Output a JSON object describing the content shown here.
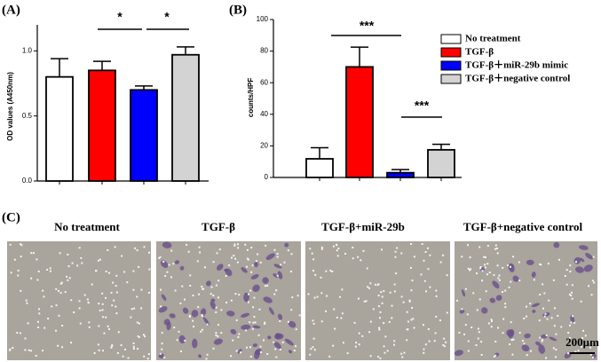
{
  "chart_data": [
    {
      "type": "bar",
      "panel_label": "(A)",
      "y_label": "OD values (A450nm)",
      "categories": [
        null,
        null,
        null,
        null
      ],
      "values": [
        0.8,
        0.85,
        0.7,
        0.97
      ],
      "errors": [
        0.14,
        0.07,
        0.03,
        0.06
      ],
      "colors": [
        "#ffffff",
        "#ff0000",
        "#0000ff",
        "#d3d3d3"
      ],
      "ylim": [
        0,
        1.2
      ],
      "yticks": [
        {
          "value": 0,
          "label": "0.0"
        },
        0.5,
        {
          "value": 1,
          "label": "1.0"
        }
      ],
      "annotations": [
        "*",
        "*"
      ]
    },
    {
      "type": "bar",
      "panel_label": "(B)",
      "y_label": "counts/HPF",
      "categories": [
        "No treatment",
        "TGF-β",
        "TGF-β＋miR-29b mimic",
        "TGF-β＋negative control"
      ],
      "values": [
        11.8,
        70,
        3,
        17.5
      ],
      "errors": [
        7,
        12.5,
        2,
        3.5
      ],
      "colors": [
        "#ffffff",
        "#ff0000",
        "#0000ff",
        "#d3d3d3"
      ],
      "ylim": [
        0,
        100
      ],
      "yticks": [
        0,
        20,
        40,
        60,
        80,
        100
      ],
      "legend": "upper right",
      "annotations": [
        "***",
        "***"
      ]
    }
  ],
  "panel_c": {
    "label": "(C)",
    "captions": [
      "No treatment",
      "TGF-β",
      "TGF-β+miR-29b",
      "TGF-β+negative control"
    ],
    "scale_bar": "200μm"
  }
}
